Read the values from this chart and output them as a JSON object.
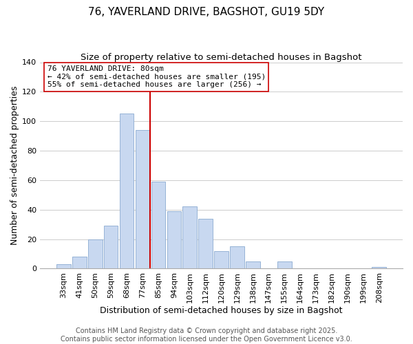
{
  "title": "76, YAVERLAND DRIVE, BAGSHOT, GU19 5DY",
  "subtitle": "Size of property relative to semi-detached houses in Bagshot",
  "xlabel": "Distribution of semi-detached houses by size in Bagshot",
  "ylabel": "Number of semi-detached properties",
  "bar_color": "#c8d8f0",
  "bar_edge_color": "#8aaad0",
  "categories": [
    "33sqm",
    "41sqm",
    "50sqm",
    "59sqm",
    "68sqm",
    "77sqm",
    "85sqm",
    "94sqm",
    "103sqm",
    "112sqm",
    "120sqm",
    "129sqm",
    "138sqm",
    "147sqm",
    "155sqm",
    "164sqm",
    "173sqm",
    "182sqm",
    "190sqm",
    "199sqm",
    "208sqm"
  ],
  "values": [
    3,
    8,
    20,
    29,
    105,
    94,
    59,
    39,
    42,
    34,
    12,
    15,
    5,
    0,
    5,
    0,
    0,
    0,
    0,
    0,
    1
  ],
  "ylim": [
    0,
    140
  ],
  "yticks": [
    0,
    20,
    40,
    60,
    80,
    100,
    120,
    140
  ],
  "vline_x": 5.5,
  "vline_color": "#cc0000",
  "annotation_title": "76 YAVERLAND DRIVE: 80sqm",
  "annotation_line1": "← 42% of semi-detached houses are smaller (195)",
  "annotation_line2": "55% of semi-detached houses are larger (256) →",
  "annotation_box_color": "#ffffff",
  "annotation_box_edge": "#cc0000",
  "footer1": "Contains HM Land Registry data © Crown copyright and database right 2025.",
  "footer2": "Contains public sector information licensed under the Open Government Licence v3.0.",
  "title_fontsize": 11,
  "subtitle_fontsize": 9.5,
  "xlabel_fontsize": 9,
  "ylabel_fontsize": 9,
  "tick_fontsize": 8,
  "annotation_fontsize": 8,
  "footer_fontsize": 7,
  "background_color": "#ffffff",
  "grid_color": "#cccccc"
}
